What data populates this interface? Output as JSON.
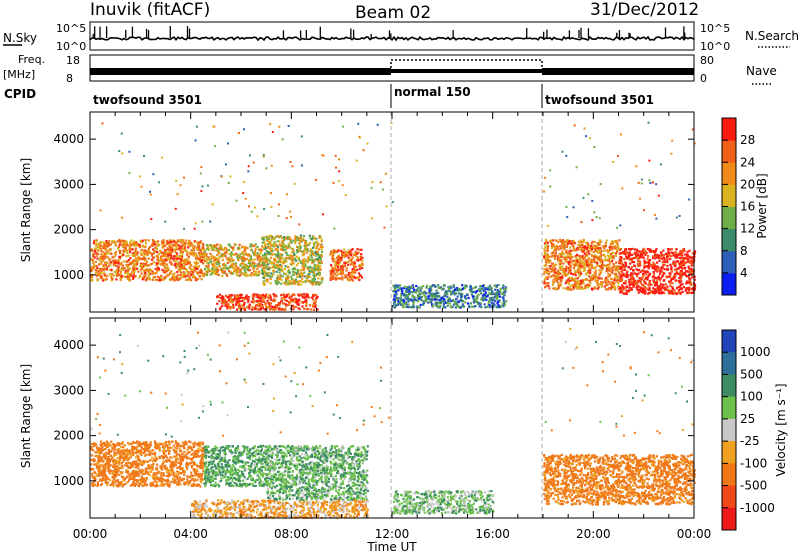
{
  "header": {
    "station": "Inuvik (fitACF)",
    "beam": "Beam 02",
    "date": "31/Dec/2012"
  },
  "strip_labels": {
    "nsky": "N.Sky",
    "nsky_top": "10^5",
    "nsky_bottom": "10^0",
    "nsearch": "N.Search",
    "nsearch_top": "10^5",
    "nsearch_bottom": "10^0",
    "freq": "Freq.",
    "freq_unit": "[MHz]",
    "freq_top": "18",
    "freq_bottom": "8",
    "nave": "Nave",
    "nave_top": "80",
    "nave_bottom": "0",
    "cpid": "CPID"
  },
  "cpid_segments": [
    {
      "label": "twofsound 3501",
      "start_hour": 0,
      "end_hour": 12
    },
    {
      "label": "normal 150",
      "start_hour": 12,
      "end_hour": 18
    },
    {
      "label": "twofsound 3501",
      "start_hour": 18,
      "end_hour": 24
    }
  ],
  "axes": {
    "xlabel": "Time UT",
    "ylabel": "Slant Range [km]",
    "x_tick_labels": [
      "00:00",
      "04:00",
      "08:00",
      "12:00",
      "16:00",
      "20:00",
      "00:00"
    ],
    "x_tick_hours": [
      0,
      4,
      8,
      12,
      16,
      20,
      24
    ],
    "y_tick_labels": [
      "1000",
      "2000",
      "3000",
      "4000"
    ],
    "y_tick_values": [
      1000,
      2000,
      3000,
      4000
    ],
    "x_range_hours": [
      0,
      24
    ],
    "y_range_km": [
      180,
      4600
    ]
  },
  "colorbars": {
    "power": {
      "label": "Power [dB]",
      "ticks": [
        "4",
        "8",
        "12",
        "16",
        "20",
        "24",
        "28"
      ],
      "colors": [
        "#0a1ff0",
        "#2e5fb8",
        "#3c8c6c",
        "#6fae46",
        "#d9b420",
        "#f08a18",
        "#f06018",
        "#ff1a10"
      ]
    },
    "velocity": {
      "label": "Velocity [m s⁻¹]",
      "ticks": [
        "1000",
        "500",
        "100",
        "25",
        "-25",
        "-100",
        "-500",
        "-1000"
      ],
      "colors": [
        "#2244bb",
        "#2e6e9a",
        "#3d8c63",
        "#6cc24a",
        "#c8c8c8",
        "#f0a020",
        "#f07818",
        "#f04818",
        "#ee1a1a"
      ]
    }
  },
  "chart_data": [
    {
      "type": "heatmap",
      "title": "Power",
      "xlabel": "Time UT",
      "ylabel": "Slant Range [km]",
      "xlim_hours": [
        0,
        24
      ],
      "ylim_km": [
        180,
        4600
      ],
      "colorbar_label": "Power [dB]",
      "colorbar_range": [
        0,
        30
      ],
      "regions": [
        {
          "t0": 0.0,
          "t1": 4.5,
          "r0": 900,
          "r1": 1800,
          "power_db": 22
        },
        {
          "t0": 4.5,
          "t1": 6.8,
          "r0": 1000,
          "r1": 1700,
          "power_db": 18
        },
        {
          "t0": 6.8,
          "t1": 9.2,
          "r0": 800,
          "r1": 1900,
          "power_db": 16
        },
        {
          "t0": 9.5,
          "t1": 10.8,
          "r0": 900,
          "r1": 1600,
          "power_db": 24
        },
        {
          "t0": 5.0,
          "t1": 9.0,
          "r0": 250,
          "r1": 600,
          "power_db": 26
        },
        {
          "t0": 12.0,
          "t1": 16.5,
          "r0": 300,
          "r1": 800,
          "power_db": 8
        },
        {
          "t0": 18.0,
          "t1": 21.0,
          "r0": 700,
          "r1": 1800,
          "power_db": 22
        },
        {
          "t0": 21.0,
          "t1": 24.0,
          "r0": 600,
          "r1": 1600,
          "power_db": 29
        }
      ]
    },
    {
      "type": "heatmap",
      "title": "Velocity",
      "xlabel": "Time UT",
      "ylabel": "Slant Range [km]",
      "xlim_hours": [
        0,
        24
      ],
      "ylim_km": [
        180,
        4600
      ],
      "colorbar_label": "Velocity [m s⁻¹]",
      "regions": [
        {
          "t0": 0.0,
          "t1": 4.5,
          "r0": 900,
          "r1": 1900,
          "velocity": -150
        },
        {
          "t0": 4.5,
          "t1": 7.0,
          "r0": 900,
          "r1": 1800,
          "velocity": 100
        },
        {
          "t0": 7.0,
          "t1": 11.0,
          "r0": 600,
          "r1": 1800,
          "velocity": 80
        },
        {
          "t0": 4.0,
          "t1": 11.0,
          "r0": 200,
          "r1": 600,
          "velocity": -60
        },
        {
          "t0": 12.0,
          "t1": 16.0,
          "r0": 300,
          "r1": 800,
          "velocity": 60
        },
        {
          "t0": 18.0,
          "t1": 24.0,
          "r0": 500,
          "r1": 1600,
          "velocity": -150
        }
      ]
    }
  ]
}
